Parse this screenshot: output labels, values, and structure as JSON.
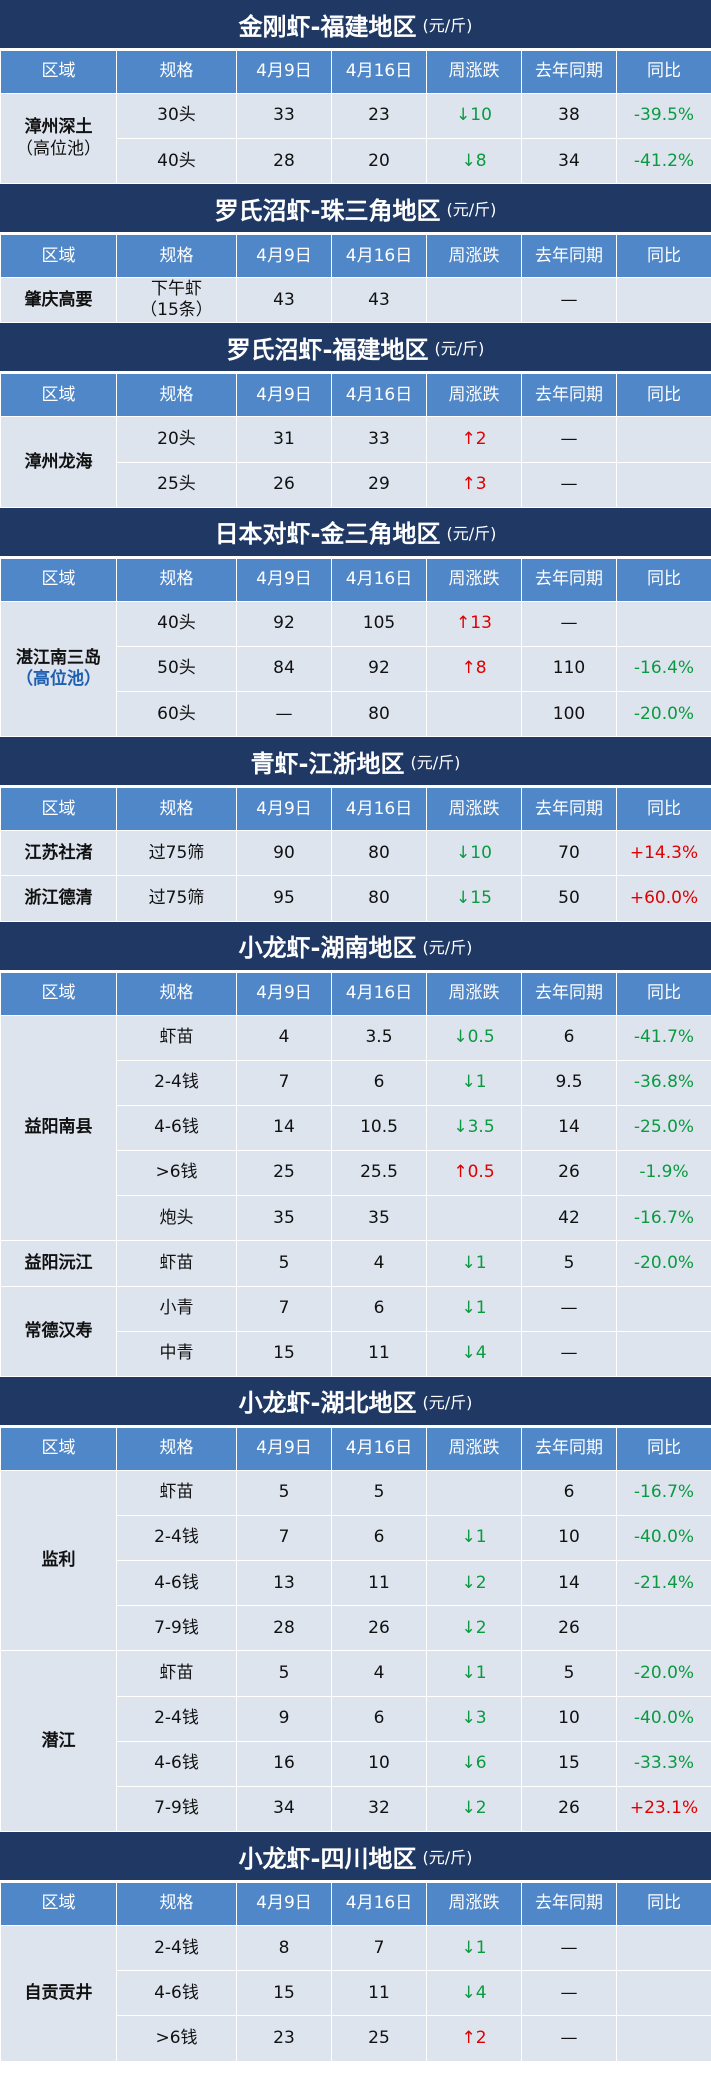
{
  "headers": [
    "区域",
    "规格",
    "4月9日",
    "4月16日",
    "周涨跌",
    "去年同期",
    "同比"
  ],
  "sections": [
    {
      "title": "金刚虾-福建地区",
      "unit": "(元/斤)",
      "groups": [
        {
          "region": "漳州深土",
          "note": "（高位池）",
          "rows": [
            [
              "30头",
              33,
              23,
              "↓10",
              38,
              "-39.5%"
            ],
            [
              "40头",
              28,
              20,
              "↓8",
              34,
              "-41.2%"
            ]
          ]
        }
      ]
    },
    {
      "title": "罗氏沼虾-珠三角地区",
      "unit": "(元/斤)",
      "groups": [
        {
          "region": "肇庆高要",
          "rows": [
            [
              "下午虾\n（15条）",
              43,
              43,
              null,
              "—",
              null
            ]
          ]
        }
      ]
    },
    {
      "title": "罗氏沼虾-福建地区",
      "unit": "(元/斤)",
      "groups": [
        {
          "region": "漳州龙海",
          "rows": [
            [
              "20头",
              31,
              33,
              "↑2",
              "—",
              null
            ],
            [
              "25头",
              26,
              29,
              "↑3",
              "—",
              null
            ]
          ]
        }
      ]
    },
    {
      "title": "日本对虾-金三角地区",
      "unit": "(元/斤)",
      "groups": [
        {
          "region": "湛江南三岛",
          "note": "（高位池）",
          "rows": [
            [
              "40头",
              92,
              105,
              "↑13",
              "—",
              null
            ],
            [
              "50头",
              84,
              92,
              "↑8",
              110,
              "-16.4%"
            ],
            [
              "60头",
              "—",
              80,
              null,
              100,
              "-20.0%"
            ]
          ]
        }
      ]
    },
    {
      "title": "青虾-江浙地区",
      "unit": "(元/斤)",
      "groups": [
        {
          "region": "江苏社渚",
          "rows": [
            [
              "过75筛",
              90,
              80,
              "↓10",
              70,
              "+14.3%"
            ]
          ]
        },
        {
          "region": "浙江德清",
          "rows": [
            [
              "过75筛",
              95,
              80,
              "↓15",
              50,
              "+60.0%"
            ]
          ]
        }
      ]
    },
    {
      "title": "小龙虾-湖南地区",
      "unit": "(元/斤)",
      "groups": [
        {
          "region": "益阳南县",
          "rows": [
            [
              "虾苗",
              4,
              3.5,
              "↓0.5",
              6,
              "-41.7%"
            ],
            [
              "2-4钱",
              7,
              6,
              "↓1",
              9.5,
              "-36.8%"
            ],
            [
              "4-6钱",
              14,
              10.5,
              "↓3.5",
              14,
              "-25.0%"
            ],
            [
              ">6钱",
              25,
              25.5,
              "↑0.5",
              26,
              "-1.9%"
            ],
            [
              "炮头",
              35,
              35,
              null,
              42,
              "-16.7%"
            ]
          ]
        },
        {
          "region": "益阳沅江",
          "rows": [
            [
              "虾苗",
              5,
              4,
              "↓1",
              5,
              "-20.0%"
            ]
          ]
        },
        {
          "region": "常德汉寿",
          "rows": [
            [
              "小青",
              7,
              6,
              "↓1",
              "—",
              null
            ],
            [
              "中青",
              15,
              11,
              "↓4",
              "—",
              null
            ]
          ]
        }
      ]
    },
    {
      "title": "小龙虾-湖北地区",
      "unit": "(元/斤)",
      "groups": [
        {
          "region": "监利",
          "rows": [
            [
              "虾苗",
              5,
              5,
              null,
              6,
              "-16.7%"
            ],
            [
              "2-4钱",
              7,
              6,
              "↓1",
              10,
              "-40.0%"
            ],
            [
              "4-6钱",
              13,
              11,
              "↓2",
              14,
              "-21.4%"
            ],
            [
              "7-9钱",
              28,
              26,
              "↓2",
              26,
              null
            ]
          ]
        },
        {
          "region": "潜江",
          "rows": [
            [
              "虾苗",
              5,
              4,
              "↓1",
              5,
              "-20.0%"
            ],
            [
              "2-4钱",
              9,
              6,
              "↓3",
              10,
              "-40.0%"
            ],
            [
              "4-6钱",
              16,
              10,
              "↓6",
              15,
              "-33.3%"
            ],
            [
              "7-9钱",
              34,
              32,
              "↓2",
              26,
              "+23.1%"
            ]
          ]
        }
      ]
    },
    {
      "title": "小龙虾-四川地区",
      "unit": "(元/斤)",
      "groups": [
        {
          "region": "自贡贡井",
          "rows": [
            [
              "2-4钱",
              8,
              7,
              "↓1",
              "—",
              null
            ],
            [
              "4-6钱",
              15,
              11,
              "↓4",
              "—",
              null
            ],
            [
              ">6钱",
              23,
              25,
              "↑2",
              "—",
              null
            ]
          ]
        }
      ]
    }
  ]
}
